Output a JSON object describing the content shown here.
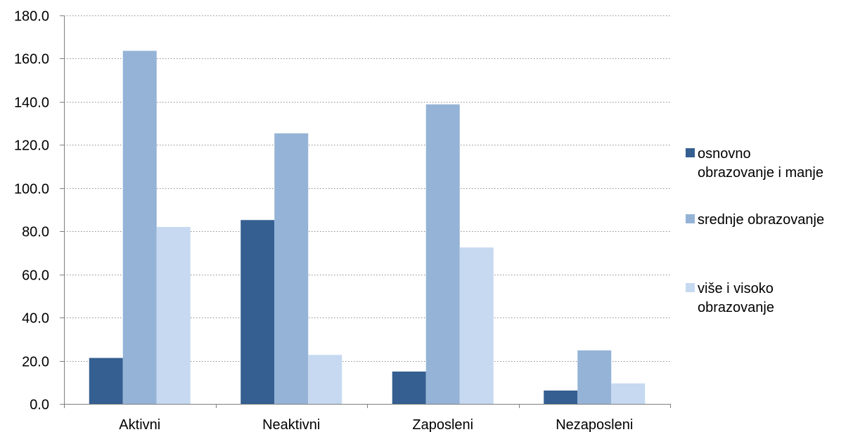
{
  "chart_data": {
    "type": "bar",
    "title": "",
    "xlabel": "",
    "ylabel": "",
    "categories": [
      "Aktivni",
      "Neaktivni",
      "Zaposleni",
      "Nezaposleni"
    ],
    "series": [
      {
        "name": "osnovno obrazovanje i manje",
        "legend_lines": [
          "osnovno",
          "obrazovanje i manje"
        ],
        "color": "#355f91",
        "values": [
          21.3,
          85.2,
          15.0,
          6.2
        ]
      },
      {
        "name": "srednje obrazovanje",
        "legend_lines": [
          "srednje obrazovanje"
        ],
        "color": "#95b3d7",
        "values": [
          163.6,
          125.4,
          138.8,
          24.8
        ]
      },
      {
        "name": "više i visoko obrazovanje",
        "legend_lines": [
          "više i visoko",
          "obrazovanje"
        ],
        "color": "#c6d9f1",
        "values": [
          82.0,
          22.7,
          72.5,
          9.5
        ]
      }
    ],
    "ylim": [
      0,
      180
    ],
    "yticks": [
      "0.0",
      "20.0",
      "40.0",
      "60.0",
      "80.0",
      "100.0",
      "120.0",
      "140.0",
      "160.0",
      "180.0"
    ],
    "ytick_values": [
      0,
      20,
      40,
      60,
      80,
      100,
      120,
      140,
      160,
      180
    ],
    "grid": true,
    "legend_position": "right"
  }
}
